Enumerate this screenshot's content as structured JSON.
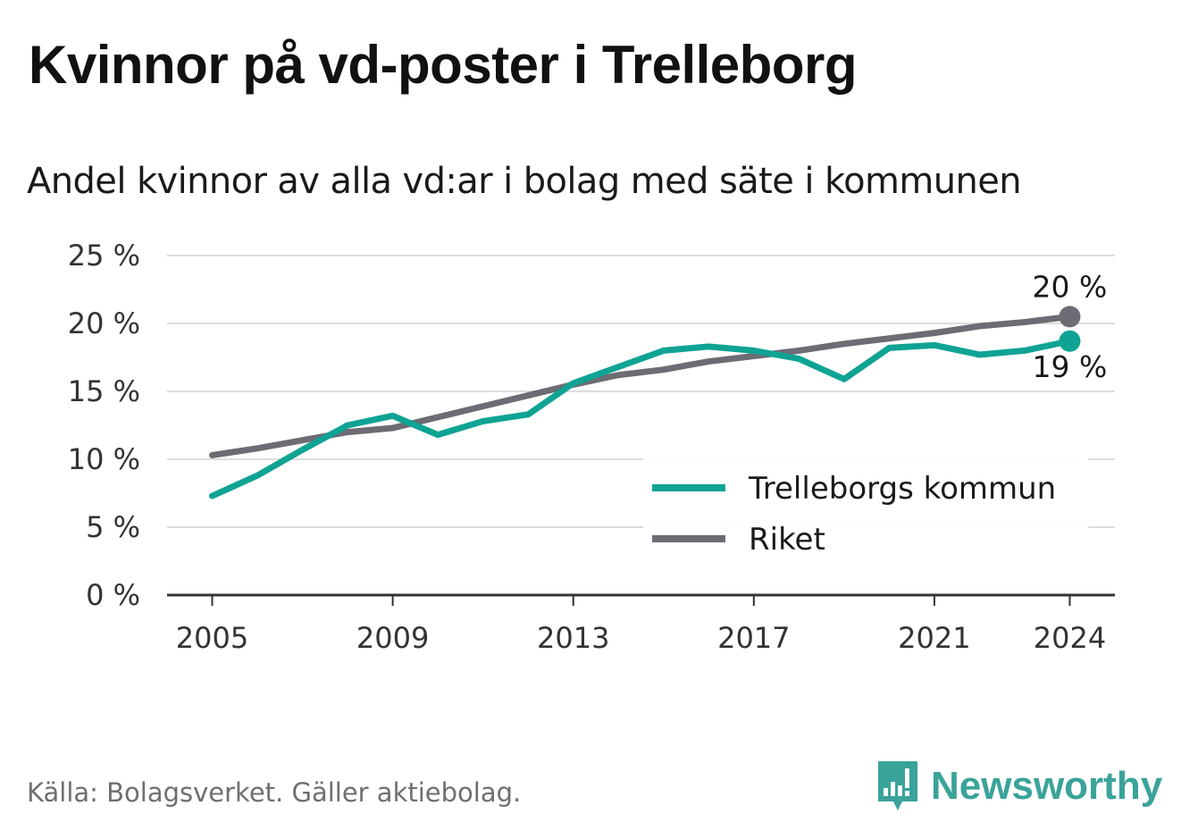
{
  "header": {
    "title": "Kvinnor på vd-poster i Trelleborg",
    "subtitle": "Andel kvinnor av alla vd:ar i bolag med säte i kommunen"
  },
  "footer": {
    "source": "Källa: Bolagsverket. Gäller aktiebolag.",
    "brand": "Newsworthy",
    "brand_icon": "bar-chart-icon",
    "brand_color": "#3aa39a"
  },
  "chart_data": {
    "type": "line",
    "title": "Kvinnor på vd-poster i Trelleborg",
    "subtitle": "Andel kvinnor av alla vd:ar i bolag med säte i kommunen",
    "xlabel": "",
    "ylabel": "",
    "x": [
      2005,
      2006,
      2007,
      2008,
      2009,
      2010,
      2011,
      2012,
      2013,
      2014,
      2015,
      2016,
      2017,
      2018,
      2019,
      2020,
      2021,
      2022,
      2023,
      2024
    ],
    "xticks": [
      2005,
      2009,
      2013,
      2017,
      2021,
      2024
    ],
    "xlim": [
      2004,
      2025
    ],
    "ylim": [
      0,
      25
    ],
    "yticks": [
      0,
      5,
      10,
      15,
      20,
      25
    ],
    "ytick_suffix": " %",
    "grid": true,
    "legend": "bottom-right",
    "series": [
      {
        "name": "Trelleborgs kommun",
        "color": "#0fa394",
        "values": [
          7.3,
          8.8,
          10.7,
          12.5,
          13.2,
          11.8,
          12.8,
          13.3,
          15.6,
          16.8,
          18.0,
          18.3,
          18.0,
          17.4,
          15.9,
          18.2,
          18.4,
          17.7,
          18.0,
          18.7
        ],
        "end_label": "19 %"
      },
      {
        "name": "Riket",
        "color": "#6d6b73",
        "values": [
          10.3,
          10.8,
          11.4,
          12.0,
          12.3,
          13.1,
          13.9,
          14.7,
          15.5,
          16.2,
          16.6,
          17.2,
          17.6,
          18.0,
          18.5,
          18.9,
          19.3,
          19.8,
          20.1,
          20.5
        ],
        "end_label": "20 %"
      }
    ]
  }
}
